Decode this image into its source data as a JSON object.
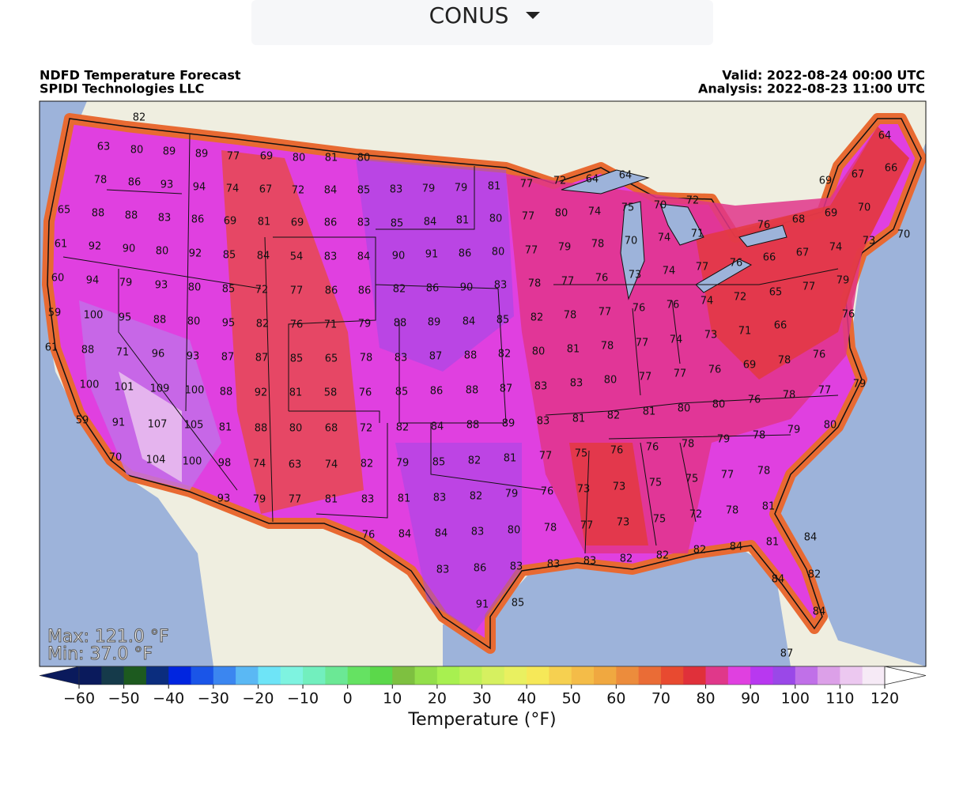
{
  "header": {
    "selector": "CONUS"
  },
  "map": {
    "title": "NDFD Temperature Forecast",
    "subtitle": "SPIDI Technologies LLC",
    "valid": "Valid: 2022-08-24 00:00 UTC",
    "analysis": "Analysis: 2022-08-23 11:00 UTC",
    "max": "Max: 121.0 °F",
    "min": "Min: 37.0 °F",
    "stations": [
      82,
      64,
      63,
      80,
      89,
      89,
      77,
      69,
      80,
      81,
      80,
      78,
      86,
      93,
      94,
      74,
      67,
      72,
      84,
      85,
      83,
      79,
      79,
      81,
      77,
      72,
      64,
      64,
      69,
      67,
      66,
      65,
      88,
      88,
      83,
      86,
      69,
      81,
      69,
      86,
      83,
      85,
      84,
      81,
      80,
      77,
      80,
      74,
      75,
      70,
      72,
      76,
      68,
      69,
      70,
      61,
      92,
      90,
      80,
      92,
      85,
      84,
      54,
      83,
      84,
      90,
      91,
      86,
      80,
      77,
      79,
      78,
      70,
      74,
      71,
      66,
      67,
      74,
      73,
      70,
      60,
      94,
      79,
      93,
      80,
      85,
      72,
      77,
      86,
      86,
      82,
      86,
      90,
      83,
      78,
      77,
      76,
      73,
      74,
      77,
      76,
      65,
      77,
      79,
      59,
      100,
      95,
      88,
      80,
      95,
      82,
      76,
      71,
      79,
      88,
      89,
      84,
      85,
      82,
      78,
      77,
      76,
      76,
      74,
      72,
      66,
      76,
      61,
      88,
      71,
      96,
      93,
      87,
      87,
      85,
      65,
      78,
      83,
      87,
      88,
      82,
      80,
      81,
      78,
      77,
      74,
      73,
      71,
      78,
      76,
      100,
      101,
      109,
      100,
      88,
      92,
      81,
      58,
      76,
      85,
      86,
      88,
      87,
      83,
      83,
      80,
      77,
      77,
      76,
      69,
      78,
      77,
      79,
      59,
      91,
      107,
      105,
      81,
      88,
      80,
      68,
      72,
      82,
      84,
      88,
      89,
      83,
      81,
      82,
      81,
      80,
      80,
      76,
      78,
      79,
      80,
      70,
      104,
      100,
      98,
      74,
      63,
      74,
      82,
      79,
      85,
      82,
      81,
      77,
      75,
      76,
      76,
      78,
      79,
      77,
      78,
      93,
      79,
      77,
      81,
      83,
      81,
      83,
      82,
      79,
      76,
      73,
      73,
      75,
      75,
      72,
      78,
      81,
      76,
      84,
      84,
      83,
      80,
      78,
      77,
      73,
      75,
      82,
      84,
      81,
      84,
      83,
      86,
      83,
      83,
      83,
      82,
      82,
      84,
      82,
      91,
      85,
      84,
      87
    ]
  },
  "colorbar": {
    "label": "Temperature (°F)",
    "ticks": [
      "−60",
      "−50",
      "−40",
      "−30",
      "−20",
      "−10",
      "0",
      "10",
      "20",
      "30",
      "40",
      "50",
      "60",
      "70",
      "80",
      "90",
      "100",
      "110",
      "120"
    ]
  }
}
